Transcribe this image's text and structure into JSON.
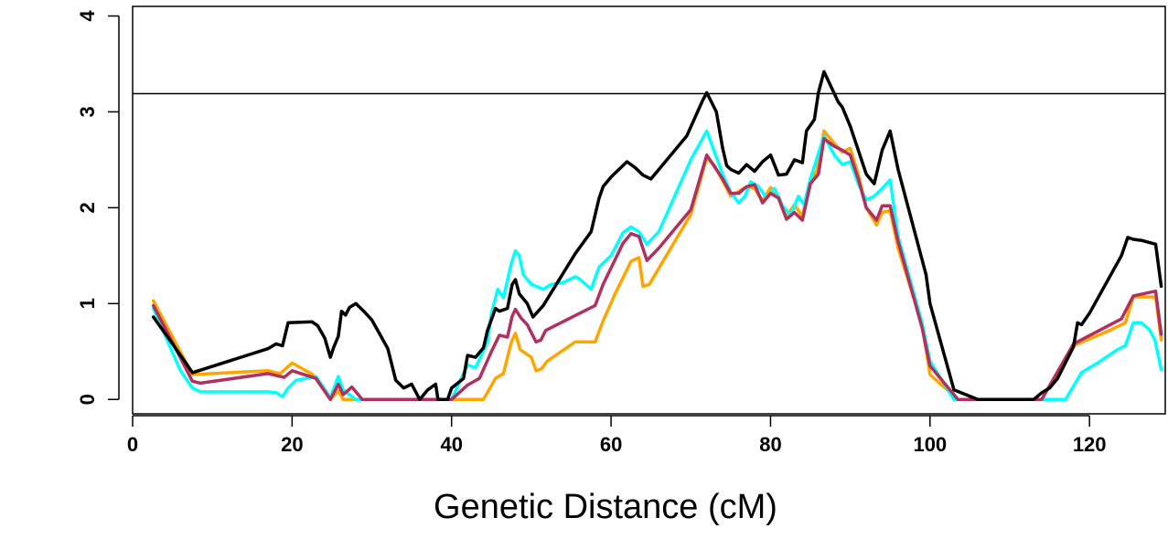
{
  "chart_data": {
    "type": "line",
    "title": "",
    "xlabel": "Genetic Distance (cM)",
    "ylabel": "",
    "xlim": [
      0,
      129.5
    ],
    "ylim": [
      -0.15,
      4.1
    ],
    "x_ticks": [
      0,
      20,
      40,
      60,
      80,
      100,
      120
    ],
    "y_ticks": [
      0,
      1,
      2,
      3,
      4
    ],
    "grid": false,
    "legend": "none",
    "threshold": 3.19,
    "series": [
      {
        "color": "#FFA500",
        "points": [
          [
            2.6,
            1.03
          ],
          [
            7.5,
            0.26
          ],
          [
            17,
            0.3
          ],
          [
            18.5,
            0.27
          ],
          [
            20,
            0.38
          ],
          [
            22.6,
            0.26
          ],
          [
            24.8,
            0.0
          ],
          [
            25.8,
            0.09
          ],
          [
            26.4,
            0.0
          ],
          [
            27.5,
            0.0
          ],
          [
            40,
            0.0
          ],
          [
            44,
            0.0
          ],
          [
            45.5,
            0.22
          ],
          [
            46.5,
            0.27
          ],
          [
            47.5,
            0.6
          ],
          [
            48,
            0.69
          ],
          [
            48.6,
            0.52
          ],
          [
            50,
            0.44
          ],
          [
            50.6,
            0.3
          ],
          [
            51.3,
            0.32
          ],
          [
            52,
            0.4
          ],
          [
            55.5,
            0.6
          ],
          [
            58,
            0.6
          ],
          [
            59,
            0.82
          ],
          [
            60.5,
            1.1
          ],
          [
            62.5,
            1.44
          ],
          [
            63.5,
            1.48
          ],
          [
            64,
            1.18
          ],
          [
            64.8,
            1.2
          ],
          [
            70,
            1.93
          ],
          [
            72,
            2.52
          ],
          [
            73,
            2.44
          ],
          [
            74,
            2.28
          ],
          [
            75,
            2.12
          ],
          [
            76,
            2.17
          ],
          [
            77,
            2.22
          ],
          [
            78,
            2.2
          ],
          [
            79,
            2.07
          ],
          [
            80,
            2.21
          ],
          [
            81,
            2.12
          ],
          [
            82,
            1.91
          ],
          [
            83,
            2.03
          ],
          [
            84,
            1.91
          ],
          [
            85,
            2.3
          ],
          [
            85.8,
            2.38
          ],
          [
            86.7,
            2.8
          ],
          [
            88,
            2.67
          ],
          [
            89,
            2.58
          ],
          [
            90,
            2.62
          ],
          [
            91,
            2.35
          ],
          [
            92,
            2.0
          ],
          [
            93.3,
            1.82
          ],
          [
            94,
            1.95
          ],
          [
            95,
            1.97
          ],
          [
            96,
            1.58
          ],
          [
            99,
            0.78
          ],
          [
            100,
            0.26
          ],
          [
            103.5,
            0.0
          ],
          [
            114,
            0.0
          ],
          [
            118,
            0.56
          ],
          [
            122.5,
            0.72
          ],
          [
            124.5,
            0.8
          ],
          [
            125.5,
            1.07
          ],
          [
            128.3,
            1.07
          ],
          [
            129,
            0.62
          ]
        ]
      },
      {
        "color": "#00FFFF",
        "points": [
          [
            2.6,
            0.95
          ],
          [
            6,
            0.3
          ],
          [
            7.5,
            0.12
          ],
          [
            8.5,
            0.08
          ],
          [
            17,
            0.08
          ],
          [
            18,
            0.07
          ],
          [
            18.8,
            0.03
          ],
          [
            19.5,
            0.12
          ],
          [
            20.5,
            0.2
          ],
          [
            23,
            0.24
          ],
          [
            24.8,
            0.02
          ],
          [
            25.8,
            0.24
          ],
          [
            26.4,
            0.1
          ],
          [
            28,
            0.0
          ],
          [
            40,
            0.0
          ],
          [
            41.5,
            0.27
          ],
          [
            42,
            0.36
          ],
          [
            43,
            0.33
          ],
          [
            44.5,
            0.6
          ],
          [
            45,
            0.9
          ],
          [
            45.8,
            1.15
          ],
          [
            46.5,
            1.06
          ],
          [
            47.5,
            1.42
          ],
          [
            48,
            1.55
          ],
          [
            48.5,
            1.5
          ],
          [
            49,
            1.3
          ],
          [
            50,
            1.2
          ],
          [
            51.5,
            1.15
          ],
          [
            52.5,
            1.2
          ],
          [
            54,
            1.22
          ],
          [
            55.5,
            1.28
          ],
          [
            56,
            1.26
          ],
          [
            57.5,
            1.15
          ],
          [
            58.5,
            1.38
          ],
          [
            60,
            1.5
          ],
          [
            61.5,
            1.74
          ],
          [
            62.5,
            1.8
          ],
          [
            63.5,
            1.75
          ],
          [
            64.5,
            1.62
          ],
          [
            66,
            1.75
          ],
          [
            70,
            2.5
          ],
          [
            72,
            2.8
          ],
          [
            74,
            2.35
          ],
          [
            75,
            2.16
          ],
          [
            76,
            2.05
          ],
          [
            76.8,
            2.12
          ],
          [
            77.5,
            2.27
          ],
          [
            78.5,
            2.22
          ],
          [
            79.5,
            2.1
          ],
          [
            80.5,
            2.2
          ],
          [
            81.5,
            2.02
          ],
          [
            82.5,
            1.92
          ],
          [
            83.5,
            2.12
          ],
          [
            84.2,
            2.03
          ],
          [
            85,
            2.3
          ],
          [
            86.7,
            2.75
          ],
          [
            88,
            2.55
          ],
          [
            89,
            2.45
          ],
          [
            90,
            2.48
          ],
          [
            91,
            2.25
          ],
          [
            92,
            2.08
          ],
          [
            93,
            2.12
          ],
          [
            94,
            2.2
          ],
          [
            95,
            2.29
          ],
          [
            96,
            1.7
          ],
          [
            99,
            0.8
          ],
          [
            100,
            0.4
          ],
          [
            103,
            0.0
          ],
          [
            115,
            0.0
          ],
          [
            117,
            0.0
          ],
          [
            119,
            0.28
          ],
          [
            121,
            0.38
          ],
          [
            123.5,
            0.52
          ],
          [
            124.5,
            0.56
          ],
          [
            125.5,
            0.8
          ],
          [
            126.5,
            0.8
          ],
          [
            127.5,
            0.73
          ],
          [
            128.2,
            0.62
          ],
          [
            129,
            0.31
          ]
        ]
      },
      {
        "color": "#B03060",
        "points": [
          [
            2.6,
            0.98
          ],
          [
            7.5,
            0.19
          ],
          [
            8.5,
            0.17
          ],
          [
            17,
            0.27
          ],
          [
            19,
            0.23
          ],
          [
            20,
            0.3
          ],
          [
            23,
            0.22
          ],
          [
            24.8,
            0.0
          ],
          [
            25.8,
            0.16
          ],
          [
            26.4,
            0.05
          ],
          [
            27.5,
            0.13
          ],
          [
            28.8,
            0.0
          ],
          [
            40,
            0.0
          ],
          [
            42,
            0.15
          ],
          [
            43.5,
            0.22
          ],
          [
            45,
            0.5
          ],
          [
            46,
            0.67
          ],
          [
            47,
            0.65
          ],
          [
            47.6,
            0.87
          ],
          [
            48,
            0.94
          ],
          [
            48.7,
            0.85
          ],
          [
            49.5,
            0.78
          ],
          [
            50.6,
            0.6
          ],
          [
            51.2,
            0.62
          ],
          [
            51.8,
            0.72
          ],
          [
            58,
            0.98
          ],
          [
            59,
            1.2
          ],
          [
            61.5,
            1.63
          ],
          [
            62.5,
            1.73
          ],
          [
            63.5,
            1.7
          ],
          [
            64.5,
            1.45
          ],
          [
            66,
            1.58
          ],
          [
            70,
            1.98
          ],
          [
            72,
            2.55
          ],
          [
            74,
            2.3
          ],
          [
            75,
            2.15
          ],
          [
            76,
            2.15
          ],
          [
            77,
            2.22
          ],
          [
            78,
            2.24
          ],
          [
            79,
            2.05
          ],
          [
            80,
            2.15
          ],
          [
            81,
            2.1
          ],
          [
            82,
            1.88
          ],
          [
            83,
            1.95
          ],
          [
            84,
            1.87
          ],
          [
            85,
            2.25
          ],
          [
            86,
            2.35
          ],
          [
            86.7,
            2.72
          ],
          [
            88,
            2.64
          ],
          [
            89,
            2.6
          ],
          [
            90,
            2.55
          ],
          [
            91,
            2.3
          ],
          [
            92,
            2.0
          ],
          [
            93.3,
            1.87
          ],
          [
            94,
            2.02
          ],
          [
            95,
            2.02
          ],
          [
            96,
            1.65
          ],
          [
            99,
            0.75
          ],
          [
            100,
            0.35
          ],
          [
            103.5,
            0.0
          ],
          [
            114,
            0.0
          ],
          [
            118,
            0.58
          ],
          [
            124,
            0.84
          ],
          [
            125.5,
            1.08
          ],
          [
            128.3,
            1.13
          ],
          [
            129,
            0.68
          ]
        ]
      },
      {
        "color": "#000000",
        "points": [
          [
            2.6,
            0.86
          ],
          [
            5,
            0.58
          ],
          [
            6.5,
            0.4
          ],
          [
            7.5,
            0.28
          ],
          [
            17,
            0.53
          ],
          [
            18,
            0.58
          ],
          [
            18.8,
            0.56
          ],
          [
            19.5,
            0.8
          ],
          [
            22.5,
            0.81
          ],
          [
            23.2,
            0.77
          ],
          [
            24.1,
            0.64
          ],
          [
            24.8,
            0.44
          ],
          [
            25.2,
            0.54
          ],
          [
            25.8,
            0.66
          ],
          [
            26.2,
            0.92
          ],
          [
            26.7,
            0.88
          ],
          [
            27.2,
            0.96
          ],
          [
            28,
            1.0
          ],
          [
            29,
            0.92
          ],
          [
            30,
            0.83
          ],
          [
            31,
            0.68
          ],
          [
            32,
            0.53
          ],
          [
            33,
            0.2
          ],
          [
            34,
            0.12
          ],
          [
            35,
            0.16
          ],
          [
            36,
            0.0
          ],
          [
            37,
            0.1
          ],
          [
            38,
            0.16
          ],
          [
            38.3,
            0.0
          ],
          [
            39.5,
            0.0
          ],
          [
            40,
            0.12
          ],
          [
            41.5,
            0.22
          ],
          [
            42,
            0.46
          ],
          [
            43,
            0.44
          ],
          [
            44,
            0.54
          ],
          [
            44.5,
            0.72
          ],
          [
            45.5,
            0.95
          ],
          [
            46,
            0.92
          ],
          [
            47,
            0.95
          ],
          [
            47.6,
            1.2
          ],
          [
            48,
            1.25
          ],
          [
            48.5,
            1.1
          ],
          [
            49.5,
            1.0
          ],
          [
            50.2,
            0.86
          ],
          [
            51.5,
            0.98
          ],
          [
            55.5,
            1.52
          ],
          [
            57.5,
            1.75
          ],
          [
            58.5,
            2.1
          ],
          [
            59,
            2.22
          ],
          [
            60,
            2.32
          ],
          [
            61,
            2.4
          ],
          [
            62,
            2.48
          ],
          [
            63,
            2.42
          ],
          [
            64,
            2.34
          ],
          [
            65,
            2.3
          ],
          [
            69.5,
            2.75
          ],
          [
            71.5,
            3.12
          ],
          [
            72,
            3.2
          ],
          [
            73.2,
            3.0
          ],
          [
            74,
            2.62
          ],
          [
            74.5,
            2.44
          ],
          [
            75,
            2.4
          ],
          [
            76,
            2.36
          ],
          [
            77,
            2.45
          ],
          [
            78,
            2.38
          ],
          [
            79,
            2.48
          ],
          [
            80,
            2.55
          ],
          [
            81,
            2.34
          ],
          [
            82,
            2.35
          ],
          [
            83,
            2.5
          ],
          [
            84,
            2.47
          ],
          [
            84.5,
            2.8
          ],
          [
            85.5,
            2.92
          ],
          [
            86,
            3.2
          ],
          [
            86.7,
            3.42
          ],
          [
            87.5,
            3.28
          ],
          [
            88.5,
            3.1
          ],
          [
            89,
            3.05
          ],
          [
            90,
            2.85
          ],
          [
            91,
            2.6
          ],
          [
            92,
            2.35
          ],
          [
            93,
            2.25
          ],
          [
            94,
            2.6
          ],
          [
            95,
            2.8
          ],
          [
            96,
            2.4
          ],
          [
            99.5,
            1.3
          ],
          [
            100,
            1.0
          ],
          [
            103,
            0.1
          ],
          [
            106,
            0.0
          ],
          [
            113,
            0.0
          ],
          [
            114,
            0.07
          ],
          [
            115,
            0.12
          ],
          [
            116,
            0.22
          ],
          [
            118,
            0.55
          ],
          [
            118.5,
            0.8
          ],
          [
            119,
            0.78
          ],
          [
            120,
            0.9
          ],
          [
            124,
            1.5
          ],
          [
            124.8,
            1.69
          ],
          [
            125.5,
            1.67
          ],
          [
            126.5,
            1.66
          ],
          [
            128.3,
            1.62
          ],
          [
            129,
            1.18
          ]
        ]
      }
    ]
  }
}
